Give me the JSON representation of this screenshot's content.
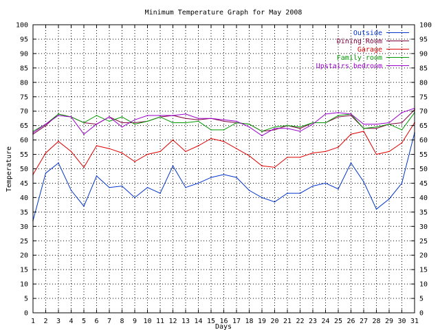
{
  "chart_data": {
    "type": "line",
    "title": "Minimum Temperature Graph for May 2008",
    "xlabel": "Days",
    "ylabel": "Temperature",
    "x": [
      1,
      2,
      3,
      4,
      5,
      6,
      7,
      8,
      9,
      10,
      11,
      12,
      13,
      14,
      15,
      16,
      17,
      18,
      19,
      20,
      21,
      22,
      23,
      24,
      25,
      26,
      27,
      28,
      29,
      30,
      31
    ],
    "xlim": [
      1,
      31
    ],
    "ylim": [
      0,
      100
    ],
    "y_ticks": [
      0,
      5,
      10,
      15,
      20,
      25,
      30,
      35,
      40,
      45,
      50,
      55,
      60,
      65,
      70,
      75,
      80,
      85,
      90,
      95,
      100
    ],
    "grid": true,
    "legend_position": "top-right",
    "series": [
      {
        "name": "Outside",
        "color": "#0033cc",
        "values": [
          32.0,
          48.5,
          52.0,
          42.5,
          37.0,
          47.5,
          43.5,
          44.0,
          40.0,
          43.5,
          41.5,
          51.0,
          43.5,
          45.0,
          47.0,
          48.0,
          47.0,
          42.5,
          40.0,
          38.5,
          41.5,
          41.5,
          44.0,
          45.0,
          43.0,
          52.0,
          45.5,
          36.0,
          39.5,
          45.0,
          62.5
        ]
      },
      {
        "name": "Dining Room",
        "color": "#800040",
        "values": [
          62.0,
          65.0,
          69.0,
          68.0,
          66.0,
          65.5,
          68.0,
          66.0,
          66.0,
          66.5,
          68.0,
          68.5,
          67.5,
          67.0,
          67.5,
          66.5,
          66.0,
          65.5,
          63.0,
          63.5,
          65.0,
          64.0,
          66.0,
          66.0,
          68.0,
          68.5,
          64.0,
          64.0,
          65.5,
          66.0,
          70.5
        ]
      },
      {
        "name": "Garage",
        "color": "#dd0000",
        "values": [
          48.0,
          55.5,
          59.5,
          56.0,
          50.5,
          58.0,
          57.0,
          55.5,
          52.5,
          55.0,
          56.0,
          60.0,
          56.0,
          58.0,
          60.5,
          59.5,
          57.0,
          54.5,
          51.0,
          50.5,
          54.0,
          54.0,
          55.5,
          56.0,
          57.5,
          62.0,
          63.0,
          55.0,
          56.0,
          59.0,
          66.0
        ]
      },
      {
        "name": "Family room",
        "color": "#009900",
        "values": [
          63.0,
          65.5,
          69.0,
          68.0,
          66.0,
          68.5,
          66.5,
          68.0,
          65.5,
          66.5,
          68.0,
          66.0,
          66.0,
          66.5,
          63.5,
          63.5,
          66.0,
          65.5,
          63.0,
          64.5,
          65.0,
          64.5,
          66.0,
          66.0,
          68.5,
          69.0,
          64.0,
          64.5,
          65.5,
          63.5,
          69.5
        ]
      },
      {
        "name": "Upstairs bedroom",
        "color": "#9900cc",
        "values": [
          62.5,
          65.5,
          68.5,
          68.0,
          62.0,
          65.5,
          68.0,
          64.5,
          67.0,
          68.5,
          68.5,
          68.5,
          69.0,
          67.5,
          67.5,
          67.0,
          66.5,
          64.5,
          61.5,
          64.0,
          64.0,
          63.0,
          65.5,
          69.0,
          69.5,
          69.0,
          65.5,
          65.5,
          66.0,
          69.5,
          71.0
        ]
      }
    ]
  }
}
